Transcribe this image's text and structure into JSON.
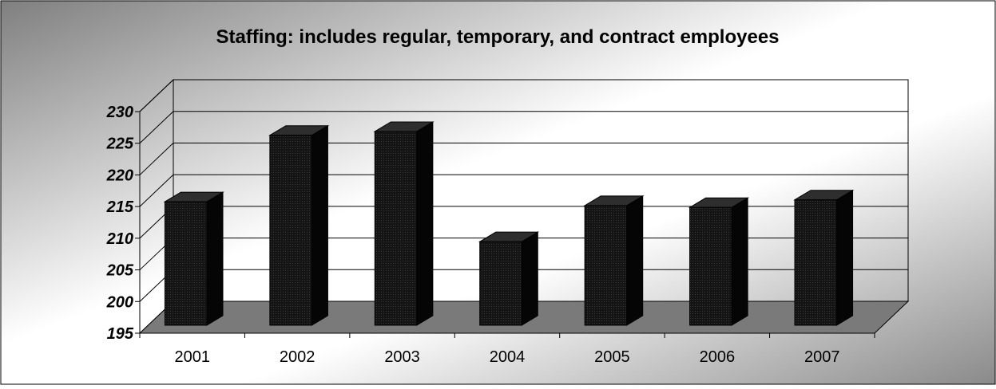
{
  "chart_data": {
    "type": "bar",
    "title": "Staffing: includes regular, temporary, and contract employees",
    "xlabel": "",
    "ylabel": "",
    "categories": [
      "2001",
      "2002",
      "2003",
      "2004",
      "2005",
      "2006",
      "2007"
    ],
    "values": [
      214.5,
      225,
      225.6,
      208.2,
      213.9,
      213.6,
      214.8
    ],
    "ylim": [
      195,
      230
    ],
    "yticks": [
      "195",
      "200",
      "205",
      "210",
      "215",
      "220",
      "225",
      "230"
    ],
    "grid": true,
    "legend": "none",
    "style": "3d-column",
    "colors": {
      "bar_front": "#1b1b1b",
      "bar_side": "#050505",
      "bar_top": "#2e2e2e",
      "floor": "#7a7a7a",
      "background_light": "#ffffff",
      "background_dark": "#7f7f7f"
    }
  }
}
